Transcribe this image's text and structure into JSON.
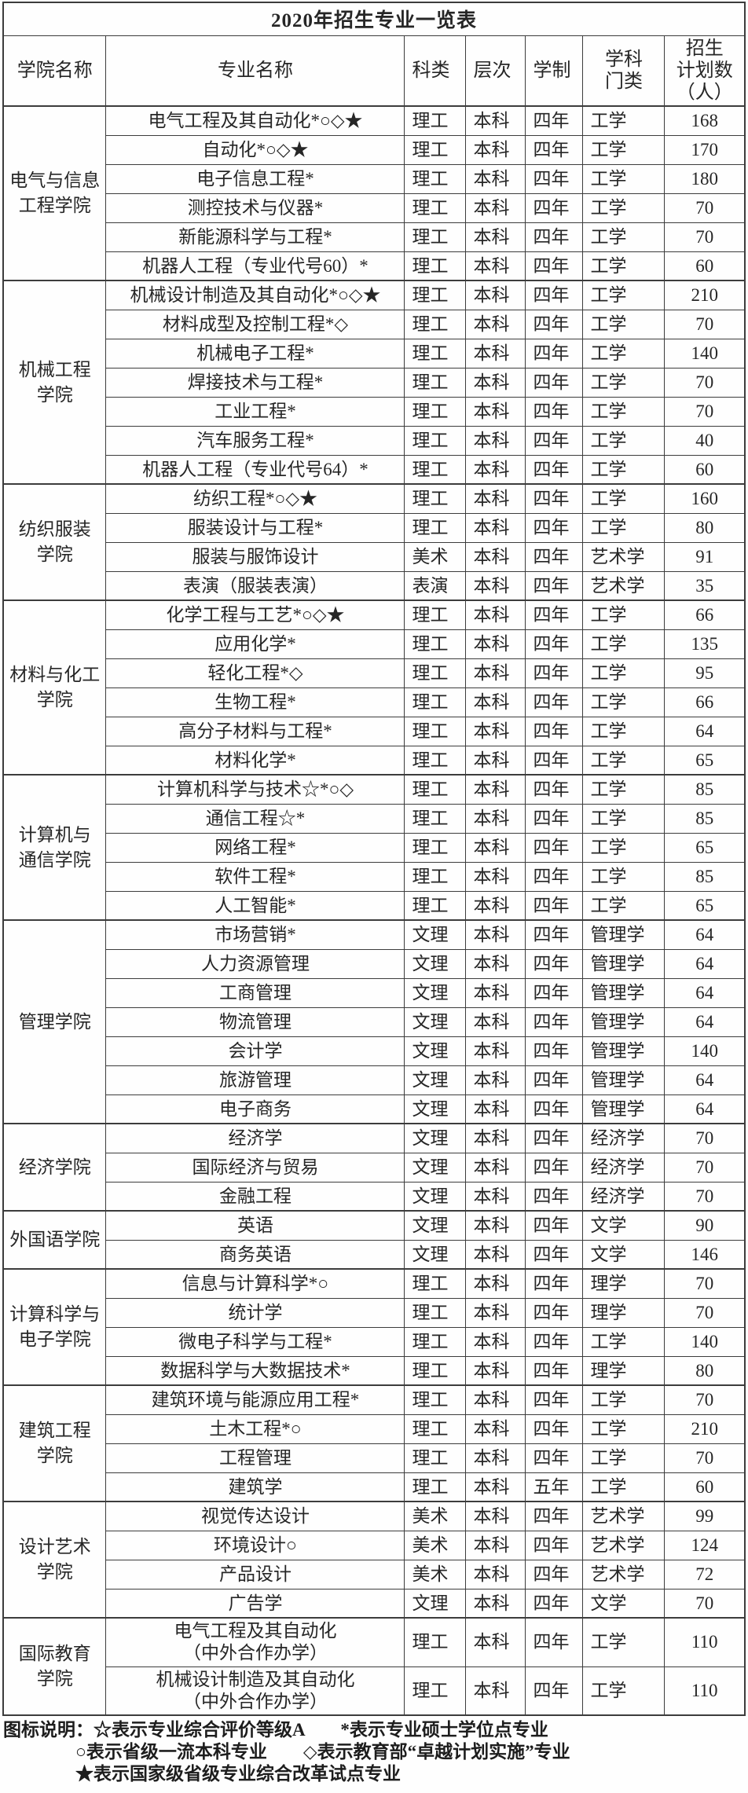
{
  "title": "2020年招生专业一览表",
  "columns": [
    "学院名称",
    "专业名称",
    "科类",
    "层次",
    "学制",
    "学科\n门类",
    "招生\n计划数\n（人）"
  ],
  "colleges": [
    {
      "name": "电气与信息\n工程学院",
      "majors": [
        {
          "major": "电气工程及其自动化*○◇★",
          "category": "理工",
          "level": "本科",
          "duration": "四年",
          "discipline": "工学",
          "plan": 168
        },
        {
          "major": "自动化*○◇★",
          "category": "理工",
          "level": "本科",
          "duration": "四年",
          "discipline": "工学",
          "plan": 170
        },
        {
          "major": "电子信息工程*",
          "category": "理工",
          "level": "本科",
          "duration": "四年",
          "discipline": "工学",
          "plan": 180
        },
        {
          "major": "测控技术与仪器*",
          "category": "理工",
          "level": "本科",
          "duration": "四年",
          "discipline": "工学",
          "plan": 70
        },
        {
          "major": "新能源科学与工程*",
          "category": "理工",
          "level": "本科",
          "duration": "四年",
          "discipline": "工学",
          "plan": 70
        },
        {
          "major": "机器人工程（专业代号60）*",
          "category": "理工",
          "level": "本科",
          "duration": "四年",
          "discipline": "工学",
          "plan": 60
        }
      ]
    },
    {
      "name": "机械工程\n学院",
      "majors": [
        {
          "major": "机械设计制造及其自动化*○◇★",
          "category": "理工",
          "level": "本科",
          "duration": "四年",
          "discipline": "工学",
          "plan": 210
        },
        {
          "major": "材料成型及控制工程*◇",
          "category": "理工",
          "level": "本科",
          "duration": "四年",
          "discipline": "工学",
          "plan": 70
        },
        {
          "major": "机械电子工程*",
          "category": "理工",
          "level": "本科",
          "duration": "四年",
          "discipline": "工学",
          "plan": 140
        },
        {
          "major": "焊接技术与工程*",
          "category": "理工",
          "level": "本科",
          "duration": "四年",
          "discipline": "工学",
          "plan": 70
        },
        {
          "major": "工业工程*",
          "category": "理工",
          "level": "本科",
          "duration": "四年",
          "discipline": "工学",
          "plan": 70
        },
        {
          "major": "汽车服务工程*",
          "category": "理工",
          "level": "本科",
          "duration": "四年",
          "discipline": "工学",
          "plan": 40
        },
        {
          "major": "机器人工程（专业代号64）*",
          "category": "理工",
          "level": "本科",
          "duration": "四年",
          "discipline": "工学",
          "plan": 60
        }
      ]
    },
    {
      "name": "纺织服装\n学院",
      "majors": [
        {
          "major": "纺织工程*○◇★",
          "category": "理工",
          "level": "本科",
          "duration": "四年",
          "discipline": "工学",
          "plan": 160
        },
        {
          "major": "服装设计与工程*",
          "category": "理工",
          "level": "本科",
          "duration": "四年",
          "discipline": "工学",
          "plan": 80
        },
        {
          "major": "服装与服饰设计",
          "category": "美术",
          "level": "本科",
          "duration": "四年",
          "discipline": "艺术学",
          "plan": 91
        },
        {
          "major": "表演（服装表演）",
          "category": "表演",
          "level": "本科",
          "duration": "四年",
          "discipline": "艺术学",
          "plan": 35
        }
      ]
    },
    {
      "name": "材料与化工\n学院",
      "majors": [
        {
          "major": "化学工程与工艺*○◇★",
          "category": "理工",
          "level": "本科",
          "duration": "四年",
          "discipline": "工学",
          "plan": 66
        },
        {
          "major": "应用化学*",
          "category": "理工",
          "level": "本科",
          "duration": "四年",
          "discipline": "工学",
          "plan": 135
        },
        {
          "major": "轻化工程*◇",
          "category": "理工",
          "level": "本科",
          "duration": "四年",
          "discipline": "工学",
          "plan": 95
        },
        {
          "major": "生物工程*",
          "category": "理工",
          "level": "本科",
          "duration": "四年",
          "discipline": "工学",
          "plan": 66
        },
        {
          "major": "高分子材料与工程*",
          "category": "理工",
          "level": "本科",
          "duration": "四年",
          "discipline": "工学",
          "plan": 64
        },
        {
          "major": "材料化学*",
          "category": "理工",
          "level": "本科",
          "duration": "四年",
          "discipline": "工学",
          "plan": 65
        }
      ]
    },
    {
      "name": "计算机与\n通信学院",
      "majors": [
        {
          "major": "计算机科学与技术☆*○◇",
          "category": "理工",
          "level": "本科",
          "duration": "四年",
          "discipline": "工学",
          "plan": 85
        },
        {
          "major": "通信工程☆*",
          "category": "理工",
          "level": "本科",
          "duration": "四年",
          "discipline": "工学",
          "plan": 85
        },
        {
          "major": "网络工程*",
          "category": "理工",
          "level": "本科",
          "duration": "四年",
          "discipline": "工学",
          "plan": 65
        },
        {
          "major": "软件工程*",
          "category": "理工",
          "level": "本科",
          "duration": "四年",
          "discipline": "工学",
          "plan": 85
        },
        {
          "major": "人工智能*",
          "category": "理工",
          "level": "本科",
          "duration": "四年",
          "discipline": "工学",
          "plan": 65
        }
      ]
    },
    {
      "name": "管理学院",
      "majors": [
        {
          "major": "市场营销*",
          "category": "文理",
          "level": "本科",
          "duration": "四年",
          "discipline": "管理学",
          "plan": 64
        },
        {
          "major": "人力资源管理",
          "category": "文理",
          "level": "本科",
          "duration": "四年",
          "discipline": "管理学",
          "plan": 64
        },
        {
          "major": "工商管理",
          "category": "文理",
          "level": "本科",
          "duration": "四年",
          "discipline": "管理学",
          "plan": 64
        },
        {
          "major": "物流管理",
          "category": "文理",
          "level": "本科",
          "duration": "四年",
          "discipline": "管理学",
          "plan": 64
        },
        {
          "major": "会计学",
          "category": "文理",
          "level": "本科",
          "duration": "四年",
          "discipline": "管理学",
          "plan": 140
        },
        {
          "major": "旅游管理",
          "category": "文理",
          "level": "本科",
          "duration": "四年",
          "discipline": "管理学",
          "plan": 64
        },
        {
          "major": "电子商务",
          "category": "文理",
          "level": "本科",
          "duration": "四年",
          "discipline": "管理学",
          "plan": 64
        }
      ]
    },
    {
      "name": "经济学院",
      "majors": [
        {
          "major": "经济学",
          "category": "文理",
          "level": "本科",
          "duration": "四年",
          "discipline": "经济学",
          "plan": 70
        },
        {
          "major": "国际经济与贸易",
          "category": "文理",
          "level": "本科",
          "duration": "四年",
          "discipline": "经济学",
          "plan": 70
        },
        {
          "major": "金融工程",
          "category": "文理",
          "level": "本科",
          "duration": "四年",
          "discipline": "经济学",
          "plan": 70
        }
      ]
    },
    {
      "name": "外国语学院",
      "majors": [
        {
          "major": "英语",
          "category": "文理",
          "level": "本科",
          "duration": "四年",
          "discipline": "文学",
          "plan": 90
        },
        {
          "major": "商务英语",
          "category": "文理",
          "level": "本科",
          "duration": "四年",
          "discipline": "文学",
          "plan": 146
        }
      ]
    },
    {
      "name": "计算科学与\n电子学院",
      "majors": [
        {
          "major": "信息与计算科学*○",
          "category": "理工",
          "level": "本科",
          "duration": "四年",
          "discipline": "理学",
          "plan": 70
        },
        {
          "major": "统计学",
          "category": "理工",
          "level": "本科",
          "duration": "四年",
          "discipline": "理学",
          "plan": 70
        },
        {
          "major": "微电子科学与工程*",
          "category": "理工",
          "level": "本科",
          "duration": "四年",
          "discipline": "工学",
          "plan": 140
        },
        {
          "major": "数据科学与大数据技术*",
          "category": "理工",
          "level": "本科",
          "duration": "四年",
          "discipline": "理学",
          "plan": 80
        }
      ]
    },
    {
      "name": "建筑工程\n学院",
      "majors": [
        {
          "major": "建筑环境与能源应用工程*",
          "category": "理工",
          "level": "本科",
          "duration": "四年",
          "discipline": "工学",
          "plan": 70
        },
        {
          "major": "土木工程*○",
          "category": "理工",
          "level": "本科",
          "duration": "四年",
          "discipline": "工学",
          "plan": 210
        },
        {
          "major": "工程管理",
          "category": "理工",
          "level": "本科",
          "duration": "四年",
          "discipline": "工学",
          "plan": 70
        },
        {
          "major": "建筑学",
          "category": "理工",
          "level": "本科",
          "duration": "五年",
          "discipline": "工学",
          "plan": 60
        }
      ]
    },
    {
      "name": "设计艺术\n学院",
      "majors": [
        {
          "major": "视觉传达设计",
          "category": "美术",
          "level": "本科",
          "duration": "四年",
          "discipline": "艺术学",
          "plan": 99
        },
        {
          "major": "环境设计○",
          "category": "美术",
          "level": "本科",
          "duration": "四年",
          "discipline": "艺术学",
          "plan": 124
        },
        {
          "major": "产品设计",
          "category": "美术",
          "level": "本科",
          "duration": "四年",
          "discipline": "艺术学",
          "plan": 72
        },
        {
          "major": "广告学",
          "category": "文理",
          "level": "本科",
          "duration": "四年",
          "discipline": "文学",
          "plan": 70
        }
      ]
    },
    {
      "name": "国际教育\n学院",
      "majors": [
        {
          "major": "电气工程及其自动化\n（中外合作办学）",
          "category": "理工",
          "level": "本科",
          "duration": "四年",
          "discipline": "工学",
          "plan": 110
        },
        {
          "major": "机械设计制造及其自动化\n（中外合作办学）",
          "category": "理工",
          "level": "本科",
          "duration": "四年",
          "discipline": "工学",
          "plan": 110
        }
      ]
    }
  ],
  "legend": {
    "label": "图标说明：",
    "lines": [
      "☆表示专业综合评价等级A　　*表示专业硕士学位点专业",
      "○表示省级一流本科专业　　◇表示教育部“卓越计划实施”专业",
      "★表示国家级省级专业综合改革试点专业"
    ]
  }
}
